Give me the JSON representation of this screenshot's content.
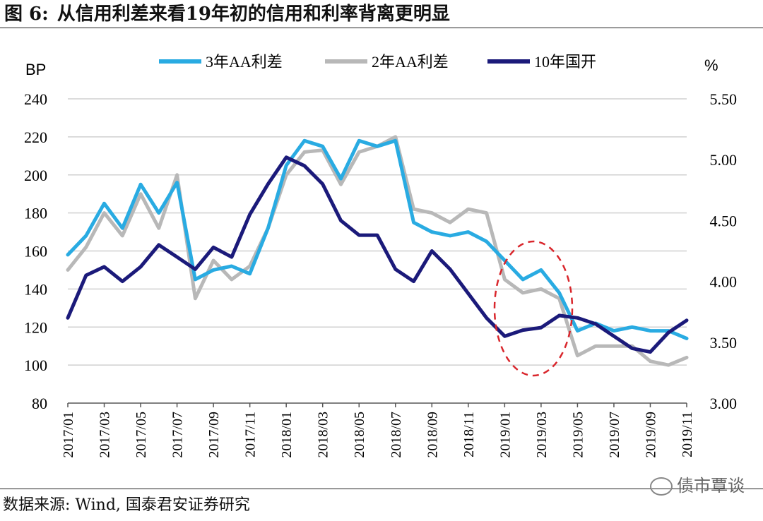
{
  "header": {
    "figure_label": "图 6:",
    "title": "从信用利差来看19年初的信用和利率背离更明显"
  },
  "footer": {
    "source": "数据来源: Wind, 国泰君安证券研究",
    "watermark": "债市覃谈"
  },
  "colors": {
    "s3y": "#29ABE2",
    "s2y": "#B8B8B8",
    "gk10": "#1B1A7A",
    "highlight": "#D9262C",
    "grid": "#D0D0D0"
  },
  "chart_data": {
    "type": "line",
    "title": "",
    "y_left_label": "BP",
    "y_right_label": "%",
    "ylim_left": [
      80,
      240
    ],
    "ylim_right": [
      3.0,
      5.5
    ],
    "yticks_left": [
      "240",
      "220",
      "200",
      "180",
      "160",
      "140",
      "120",
      "100",
      "80"
    ],
    "yticks_right": [
      "5.50",
      "5.00",
      "4.50",
      "4.00",
      "3.50",
      "3.00"
    ],
    "xticks": [
      "2017/01",
      "2017/03",
      "2017/05",
      "2017/07",
      "2017/09",
      "2017/11",
      "2018/01",
      "2018/03",
      "2018/05",
      "2018/07",
      "2018/09",
      "2018/11",
      "2019/01",
      "2019/03",
      "2019/05",
      "2019/07",
      "2019/09",
      "2019/11"
    ],
    "grid": "horizontal",
    "legend_position": "top",
    "x": [
      "2017/01",
      "2017/02",
      "2017/03",
      "2017/04",
      "2017/05",
      "2017/06",
      "2017/07",
      "2017/08",
      "2017/09",
      "2017/10",
      "2017/11",
      "2017/12",
      "2018/01",
      "2018/02",
      "2018/03",
      "2018/04",
      "2018/05",
      "2018/06",
      "2018/07",
      "2018/08",
      "2018/09",
      "2018/10",
      "2018/11",
      "2018/12",
      "2019/01",
      "2019/02",
      "2019/03",
      "2019/04",
      "2019/05",
      "2019/06",
      "2019/07",
      "2019/08",
      "2019/09",
      "2019/10",
      "2019/11"
    ],
    "series": [
      {
        "name": "3年AA利差",
        "axis": "left",
        "values": [
          158,
          168,
          185,
          172,
          195,
          180,
          196,
          145,
          150,
          152,
          148,
          172,
          205,
          218,
          215,
          198,
          218,
          215,
          218,
          175,
          170,
          168,
          170,
          165,
          155,
          145,
          150,
          138,
          118,
          122,
          118,
          120,
          118,
          118,
          114
        ]
      },
      {
        "name": "2年AA利差",
        "axis": "left",
        "values": [
          150,
          162,
          180,
          168,
          190,
          172,
          200,
          135,
          155,
          145,
          152,
          172,
          200,
          212,
          213,
          195,
          212,
          215,
          220,
          182,
          180,
          175,
          182,
          180,
          145,
          138,
          140,
          135,
          105,
          110,
          110,
          110,
          102,
          100,
          104
        ]
      },
      {
        "name": "10年国开",
        "axis": "right",
        "values": [
          3.7,
          4.05,
          4.12,
          4.0,
          4.12,
          4.3,
          4.2,
          4.1,
          4.28,
          4.2,
          4.55,
          4.8,
          5.02,
          4.95,
          4.8,
          4.5,
          4.38,
          4.38,
          4.1,
          4.0,
          4.25,
          4.1,
          3.9,
          3.7,
          3.55,
          3.6,
          3.62,
          3.72,
          3.7,
          3.65,
          3.55,
          3.45,
          3.42,
          3.58,
          3.68
        ]
      }
    ]
  }
}
